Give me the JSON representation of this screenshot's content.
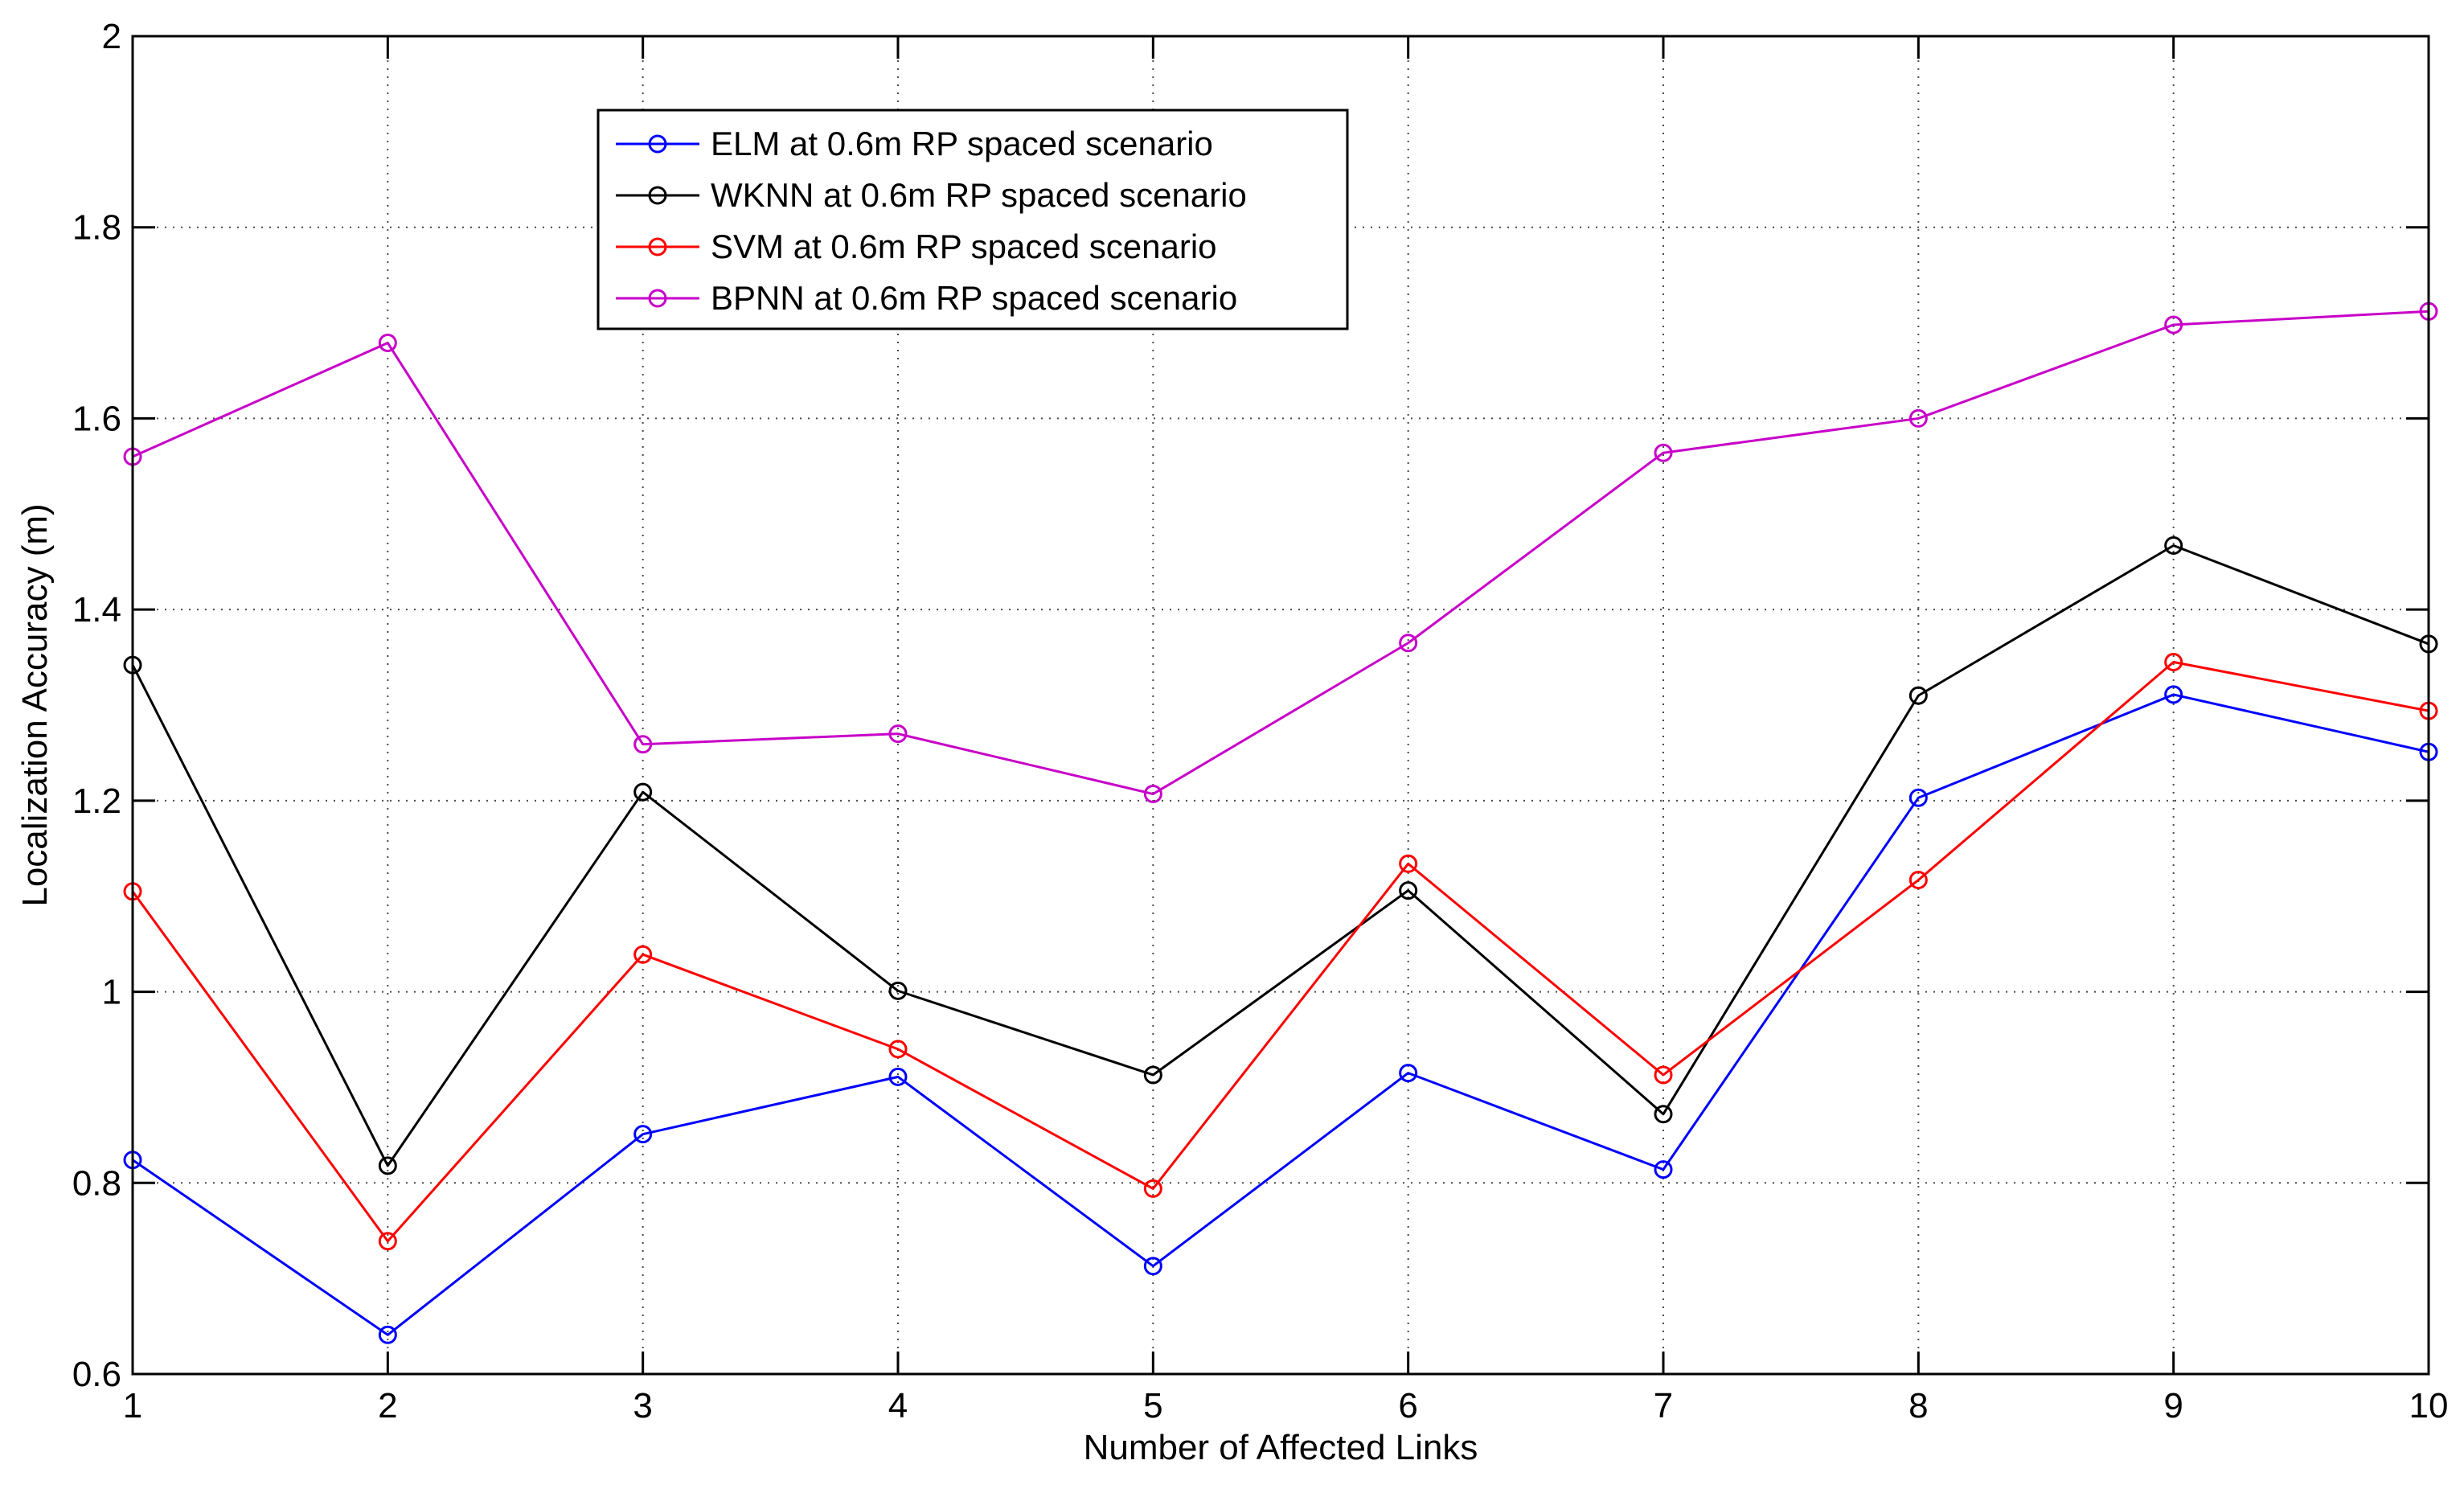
{
  "chart_data": {
    "type": "line",
    "title": "",
    "xlabel": "Number of Affected Links",
    "ylabel": "Localization Accuracy (m)",
    "xlim": [
      1,
      10
    ],
    "ylim": [
      0.6,
      2
    ],
    "x": [
      1,
      2,
      3,
      4,
      5,
      6,
      7,
      8,
      9,
      10
    ],
    "x_ticks": [
      "1",
      "2",
      "3",
      "4",
      "5",
      "6",
      "7",
      "8",
      "9",
      "10"
    ],
    "y_ticks": [
      "0.6",
      "0.8",
      "1",
      "1.2",
      "1.4",
      "1.6",
      "1.8",
      "2"
    ],
    "grid": true,
    "legend_position": "top-left",
    "series": [
      {
        "name": "ELM at 0.6m RP spaced scenario",
        "color": "#0000ff",
        "marker": "circle",
        "values": [
          0.824,
          0.641,
          0.851,
          0.911,
          0.713,
          0.915,
          0.814,
          1.203,
          1.311,
          1.251
        ]
      },
      {
        "name": "WKNN at 0.6m RP spaced scenario",
        "color": "#000000",
        "marker": "circle",
        "values": [
          1.342,
          0.818,
          1.209,
          1.001,
          0.913,
          1.106,
          0.872,
          1.31,
          1.467,
          1.364
        ]
      },
      {
        "name": "SVM at 0.6m RP spaced scenario",
        "color": "#ff0000",
        "marker": "circle",
        "values": [
          1.105,
          0.739,
          1.039,
          0.94,
          0.794,
          1.134,
          0.913,
          1.117,
          1.345,
          1.294
        ]
      },
      {
        "name": "BPNN at 0.6m RP spaced scenario",
        "color": "#c800c8",
        "marker": "circle",
        "values": [
          1.56,
          1.679,
          1.259,
          1.27,
          1.207,
          1.365,
          1.564,
          1.6,
          1.698,
          1.712
        ]
      }
    ]
  }
}
